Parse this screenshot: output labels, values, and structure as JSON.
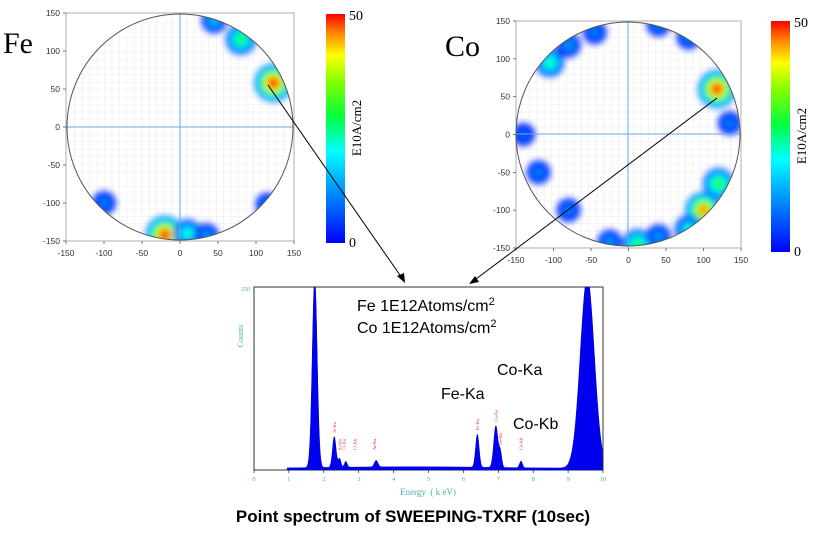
{
  "caption": "Point spectrum of SWEEPING-TXRF (10sec)",
  "wafer_maps": [
    {
      "element": "Fe",
      "colorbar": {
        "max_label": "50",
        "min_label": "0",
        "unit": "E10A/cm2",
        "max": 50,
        "min": 0
      },
      "x_ticks": [
        "-150",
        "-100",
        "-50",
        "0",
        "50",
        "100",
        "150"
      ],
      "y_ticks": [
        "150",
        "100",
        "50",
        "0",
        "-50",
        "-100",
        "-150"
      ],
      "axis_range": [
        -150,
        150
      ],
      "hotspots": [
        {
          "x": 80,
          "y": 115,
          "level": 28
        },
        {
          "x": 45,
          "y": 140,
          "level": 15
        },
        {
          "x": 123,
          "y": 58,
          "level": 50
        },
        {
          "x": -20,
          "y": -142,
          "level": 50
        },
        {
          "x": 10,
          "y": -140,
          "level": 22
        },
        {
          "x": 35,
          "y": -143,
          "level": 12
        },
        {
          "x": -100,
          "y": -100,
          "level": 10
        },
        {
          "x": 115,
          "y": -102,
          "level": 10
        }
      ]
    },
    {
      "element": "Co",
      "colorbar": {
        "max_label": "50",
        "min_label": "0",
        "unit": "E10A/cm2",
        "max": 50,
        "min": 0
      },
      "x_ticks": [
        "-150",
        "-100",
        "-50",
        "0",
        "50",
        "100",
        "150"
      ],
      "y_ticks": [
        "150",
        "100",
        "50",
        "0",
        "-50",
        "-100",
        "-150"
      ],
      "axis_range": [
        -150,
        150
      ],
      "hotspots": [
        {
          "x": -105,
          "y": 95,
          "level": 24
        },
        {
          "x": -80,
          "y": 118,
          "level": 12
        },
        {
          "x": -45,
          "y": 135,
          "level": 10
        },
        {
          "x": 40,
          "y": 145,
          "level": 10
        },
        {
          "x": 80,
          "y": 128,
          "level": 10
        },
        {
          "x": 118,
          "y": 60,
          "level": 50
        },
        {
          "x": 135,
          "y": 15,
          "level": 10
        },
        {
          "x": 120,
          "y": -65,
          "level": 30
        },
        {
          "x": 100,
          "y": -100,
          "level": 45
        },
        {
          "x": 80,
          "y": -125,
          "level": 20
        },
        {
          "x": 40,
          "y": -135,
          "level": 12
        },
        {
          "x": 12,
          "y": -145,
          "level": 28
        },
        {
          "x": -25,
          "y": -142,
          "level": 12
        },
        {
          "x": -80,
          "y": -100,
          "level": 10
        },
        {
          "x": -120,
          "y": -50,
          "level": 10
        },
        {
          "x": -140,
          "y": 0,
          "level": 8
        }
      ]
    }
  ],
  "chart_data": {
    "type": "line",
    "xlabel": "Energy  ( k eV)",
    "ylabel": "Counts",
    "xlim": [
      0,
      10
    ],
    "ylim": [
      0,
      250
    ],
    "x_ticks": [
      "0",
      "1",
      "2",
      "3",
      "4",
      "5",
      "6",
      "7",
      "8",
      "9",
      "10"
    ],
    "y_ticks": [
      "250"
    ],
    "annotations": {
      "fe_conc": "Fe 1E12Atoms/cm",
      "co_conc": "Co 1E12Atoms/cm",
      "sup": "2",
      "fe_ka": "Fe-Ka",
      "co_ka": "Co-Ka",
      "co_kb": "Co-Kb"
    },
    "peaks": [
      {
        "x": 1.74,
        "height": 260,
        "width": 0.07
      },
      {
        "x": 2.3,
        "height": 42,
        "width": 0.05
      },
      {
        "x": 2.45,
        "height": 12,
        "width": 0.04
      },
      {
        "x": 2.63,
        "height": 8,
        "width": 0.04
      },
      {
        "x": 3.5,
        "height": 9,
        "width": 0.05
      },
      {
        "x": 6.4,
        "height": 45,
        "width": 0.05
      },
      {
        "x": 6.93,
        "height": 57,
        "width": 0.06
      },
      {
        "x": 7.06,
        "height": 20,
        "width": 0.04
      },
      {
        "x": 7.65,
        "height": 9,
        "width": 0.04
      },
      {
        "x": 9.55,
        "height": 260,
        "width": 0.2
      }
    ],
    "peak_labels": [
      "Si-Ka",
      "Si-Kb",
      "Cl-Ka",
      "Cl-Kb",
      "Ar-Ka",
      "Fe-Ka",
      "Co-Ka",
      "Fe-Kb",
      "Co-Kb"
    ],
    "peak_label_x": [
      2.3,
      2.47,
      2.58,
      2.9,
      3.45,
      6.4,
      6.93,
      7.06,
      7.65
    ]
  }
}
